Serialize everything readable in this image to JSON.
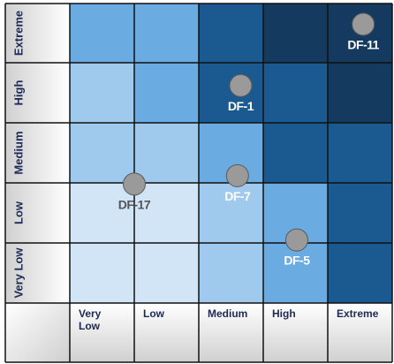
{
  "y_axis": {
    "labels": [
      "Extreme",
      "High",
      "Medium",
      "Low",
      "Very Low"
    ]
  },
  "x_axis": {
    "labels": [
      [
        "Very",
        "Low"
      ],
      [
        "Low"
      ],
      [
        "Medium"
      ],
      [
        "High"
      ],
      [
        "Extreme"
      ]
    ]
  },
  "colors": {
    "grid_line": "#111111",
    "label_text": "#1c2b55",
    "marker_fill": "#9a9a9a",
    "marker_stroke": "#5a5a5a",
    "label_dark": "#ffffff",
    "label_light": "#555555"
  },
  "cells": [
    [
      "#6aabe2",
      "#6aabe2",
      "#1b5a91",
      "#153a60",
      "#153a60"
    ],
    [
      "#9fcaee",
      "#6aabe2",
      "#1b5a91",
      "#1b5a91",
      "#153a60"
    ],
    [
      "#9fcaee",
      "#9fcaee",
      "#6aabe2",
      "#1b5a91",
      "#1b5a91"
    ],
    [
      "#d2e5f7",
      "#d2e5f7",
      "#9fcaee",
      "#6aabe2",
      "#1b5a91"
    ],
    [
      "#d2e5f7",
      "#d2e5f7",
      "#9fcaee",
      "#6aabe2",
      "#1b5a91"
    ]
  ],
  "risks": [
    {
      "id": "DF-11",
      "row": 0,
      "col": 4,
      "dx": 0.55,
      "dy": 0.35,
      "label_color": "#ffffff"
    },
    {
      "id": "DF-1",
      "row": 1,
      "col": 2,
      "dx": 0.65,
      "dy": 0.38,
      "label_color": "#ffffff"
    },
    {
      "id": "DF-7",
      "row": 2,
      "col": 2,
      "dx": 0.6,
      "dy": 0.88,
      "label_color": "#ffffff"
    },
    {
      "id": "DF-17",
      "row": 3,
      "col": 1,
      "dx": 0.0,
      "dy": 0.02,
      "label_color": "#555555"
    },
    {
      "id": "DF-5",
      "row": 3,
      "col": 3,
      "dx": 0.52,
      "dy": 0.95,
      "label_color": "#ffffff"
    }
  ]
}
